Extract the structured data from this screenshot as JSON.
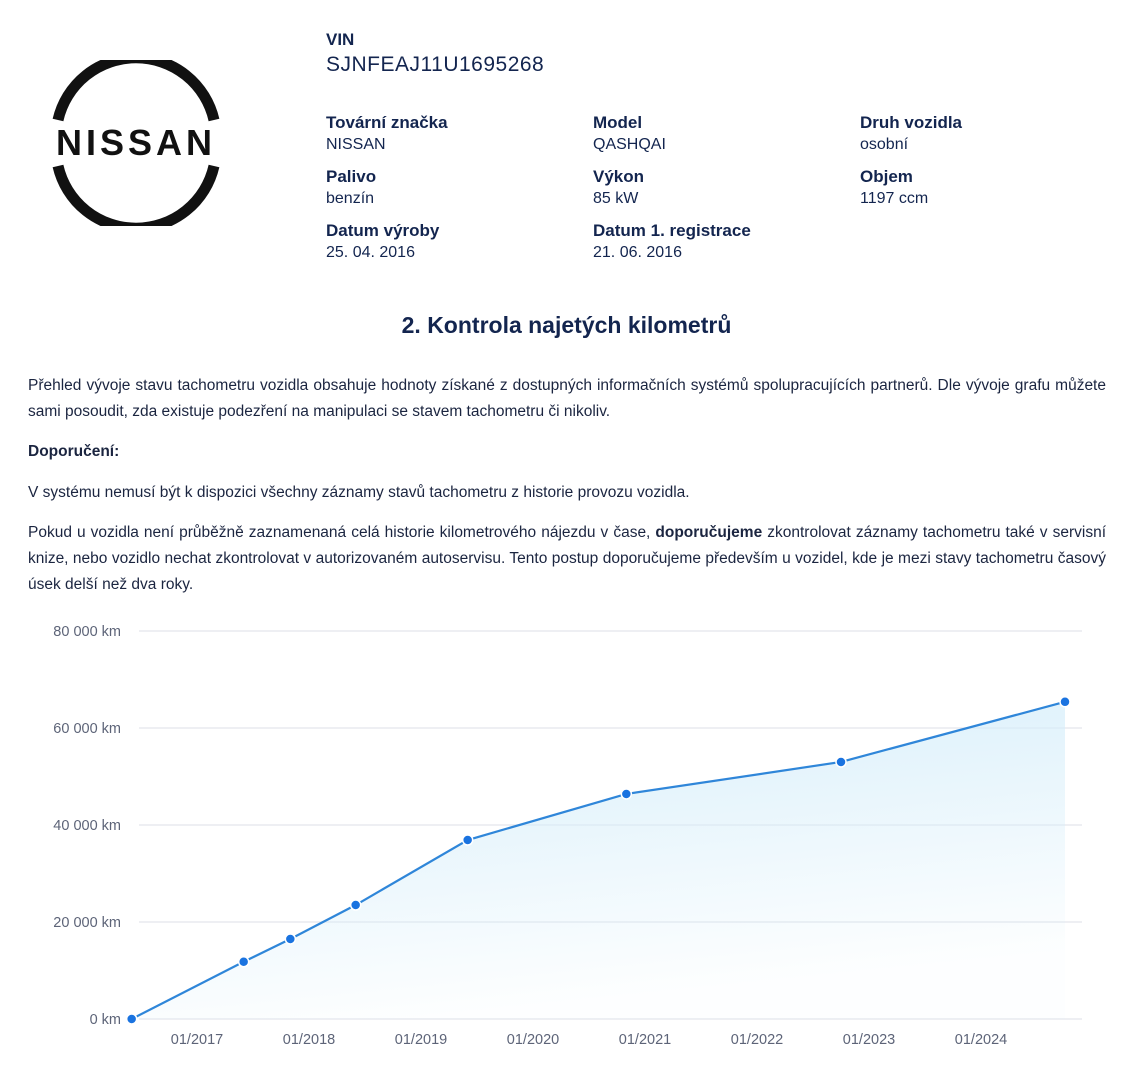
{
  "logo": {
    "brand": "NISSAN"
  },
  "vin": {
    "label": "VIN",
    "value": "SJNFEAJ11U1695268"
  },
  "fields": [
    {
      "label": "Tovární značka",
      "value": "NISSAN"
    },
    {
      "label": "Model",
      "value": "QASHQAI"
    },
    {
      "label": "Druh vozidla",
      "value": "osobní"
    },
    {
      "label": "Palivo",
      "value": "benzín"
    },
    {
      "label": "Výkon",
      "value": "85 kW"
    },
    {
      "label": "Objem",
      "value": "1197 ccm"
    },
    {
      "label": "Datum výroby",
      "value": "25. 04. 2016"
    },
    {
      "label": "Datum 1. registrace",
      "value": "21. 06. 2016"
    }
  ],
  "section": {
    "title": "2. Kontrola najetých kilometrů",
    "intro": "Přehled vývoje stavu tachometru vozidla obsahuje hodnoty získané z dostupných informačních systémů spolupracujících partnerů. Dle vývoje grafu můžete sami posoudit, zda existuje podezření na manipulaci se stavem tachometru či nikoliv.",
    "recommendation_label": "Doporučení:",
    "note": "V systému nemusí být k dispozici všechny záznamy stavů tachometru z historie provozu vozidla.",
    "advice_before": "Pokud u vozidla není průběžně zaznamenaná celá historie kilometrového nájezdu v čase, ",
    "advice_bold": "doporučujeme",
    "advice_after": " zkontrolovat záznamy tachometru také v servisní knize, nebo vozidlo nechat zkontrolovat v autorizovaném autoservisu. Tento postup doporučujeme především u vozidel, kde je mezi stavy tachometru časový úsek delší než dva roky."
  },
  "chart_data": {
    "type": "area",
    "line_color": "#2f86d9",
    "point_color": "#1a73e0",
    "fill_color": "#d6eefa",
    "grid": true,
    "ylim": [
      0,
      80000
    ],
    "yticks": [
      0,
      20000,
      40000,
      60000,
      80000
    ],
    "ytick_labels": [
      "0 km",
      "20 000 km",
      "40 000 km",
      "60 000 km",
      "80 000 km"
    ],
    "xticks": [
      "01/2017",
      "01/2018",
      "01/2019",
      "01/2020",
      "01/2021",
      "01/2022",
      "01/2023",
      "01/2024"
    ],
    "points": [
      {
        "date": "2016-06",
        "km": 0
      },
      {
        "date": "2017-06",
        "km": 11800
      },
      {
        "date": "2017-11",
        "km": 16500
      },
      {
        "date": "2018-06",
        "km": 23500
      },
      {
        "date": "2019-06",
        "km": 36900
      },
      {
        "date": "2020-11",
        "km": 46400
      },
      {
        "date": "2022-10",
        "km": 53000
      },
      {
        "date": "2024-10",
        "km": 65400
      }
    ]
  }
}
